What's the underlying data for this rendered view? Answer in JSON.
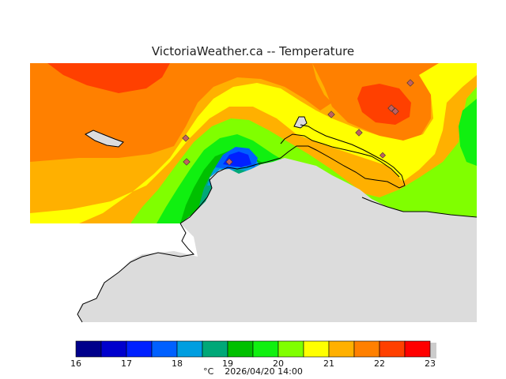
{
  "title": "VictoriaWeather.ca -- Temperature",
  "colorbar": {
    "colors": [
      "#00008b",
      "#0000cd",
      "#0020ff",
      "#0060ff",
      "#009ee0",
      "#00a878",
      "#00c000",
      "#10f010",
      "#80ff00",
      "#ffff00",
      "#ffb000",
      "#ff8000",
      "#ff4000",
      "#ff0000"
    ],
    "ticks": [
      "16",
      "17",
      "18",
      "19",
      "20",
      "21",
      "22",
      "23"
    ]
  },
  "footer": {
    "unit": "°C",
    "timestamp": "2026/04/20 14:00"
  },
  "colors": {
    "land": "#dcdcdc",
    "coast": "#000000",
    "station_marker": "#c06060"
  }
}
